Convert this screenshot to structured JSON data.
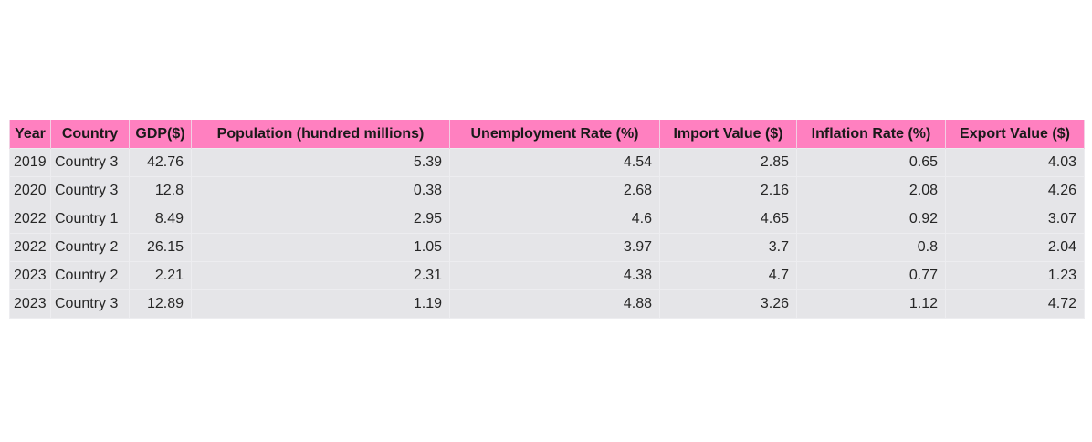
{
  "chart_data": {
    "type": "table",
    "columns": [
      "Year",
      "Country",
      "GDP($)",
      "Population (hundred millions)",
      "Unemployment Rate (%)",
      "Import Value ($)",
      "Inflation Rate (%)",
      "Export Value ($)"
    ],
    "rows": [
      [
        "2019",
        "Country 3",
        "42.76",
        "5.39",
        "4.54",
        "2.85",
        "0.65",
        "4.03"
      ],
      [
        "2020",
        "Country 3",
        "12.8",
        "0.38",
        "2.68",
        "2.16",
        "2.08",
        "4.26"
      ],
      [
        "2022",
        "Country 1",
        "8.49",
        "2.95",
        "4.6",
        "4.65",
        "0.92",
        "3.07"
      ],
      [
        "2022",
        "Country 2",
        "26.15",
        "1.05",
        "3.97",
        "3.7",
        "0.8",
        "2.04"
      ],
      [
        "2023",
        "Country 2",
        "2.21",
        "2.31",
        "4.38",
        "4.7",
        "0.77",
        "1.23"
      ],
      [
        "2023",
        "Country 3",
        "12.89",
        "1.19",
        "4.88",
        "3.26",
        "1.12",
        "4.72"
      ]
    ],
    "header_color": "#ff80c0",
    "cell_color": "#e5e5e8"
  }
}
